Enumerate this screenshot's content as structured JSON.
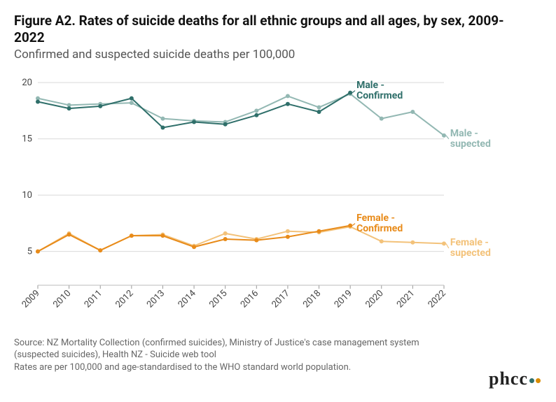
{
  "title": "Figure A2. Rates of suicide deaths for all ethnic groups and all ages, by sex, 2009-2022",
  "subtitle": "Confirmed and suspected suicide deaths per 100,000",
  "source_line1": "Source: NZ Mortality Collection (confirmed suicides), Ministry of Justice's case management system (suspected suicides), Health NZ - Suicide web tool",
  "source_line2": "Rates are per 100,000 and age-standardised to the WHO standard world population.",
  "logo_text": "phcc",
  "logo_dots": [
    "#2f6f6a",
    "#d98c00"
  ],
  "chart": {
    "type": "line",
    "background_color": "#ffffff",
    "grid_color": "#d9d9d9",
    "xlim": [
      2009,
      2022
    ],
    "ylim": [
      2,
      21
    ],
    "yticks": [
      5,
      10,
      15,
      20
    ],
    "xticks": [
      2009,
      2010,
      2011,
      2012,
      2013,
      2014,
      2015,
      2016,
      2017,
      2018,
      2019,
      2020,
      2021,
      2022
    ],
    "xtick_rotation": -45,
    "axis_fontsize": 13,
    "series": {
      "male_confirmed": {
        "label": "Male - Confirmed",
        "color": "#2f6f6a",
        "line_width": 2,
        "marker": "circle",
        "years": [
          2009,
          2010,
          2011,
          2012,
          2013,
          2014,
          2015,
          2016,
          2017,
          2018,
          2019
        ],
        "values": [
          18.3,
          17.7,
          17.9,
          18.6,
          16.0,
          16.5,
          16.3,
          17.1,
          18.1,
          17.4,
          19.1
        ],
        "label_pos_year": 2019.2,
        "label_pos_value": 19.6
      },
      "male_suspected": {
        "label": "Male - supected",
        "color": "#93b8b3",
        "line_width": 2,
        "marker": "circle",
        "years": [
          2009,
          2010,
          2011,
          2012,
          2013,
          2014,
          2015,
          2016,
          2017,
          2018,
          2019,
          2020,
          2021,
          2022
        ],
        "values": [
          18.6,
          18.0,
          18.1,
          18.2,
          16.8,
          16.6,
          16.5,
          17.5,
          18.8,
          17.8,
          19.0,
          16.8,
          17.4,
          15.3
        ],
        "label_pos_year": 2022.2,
        "label_pos_value": 15.3
      },
      "female_confirmed": {
        "label": "Female - Confirmed",
        "color": "#e88b1a",
        "line_width": 2,
        "marker": "circle",
        "years": [
          2009,
          2010,
          2011,
          2012,
          2013,
          2014,
          2015,
          2016,
          2017,
          2018,
          2019
        ],
        "values": [
          5.0,
          6.5,
          5.1,
          6.4,
          6.4,
          5.4,
          6.1,
          6.0,
          6.3,
          6.8,
          7.3
        ],
        "label_pos_year": 2019.2,
        "label_pos_value": 7.8
      },
      "female_suspected": {
        "label": "Female - supected",
        "color": "#f3c27a",
        "line_width": 2,
        "marker": "circle",
        "years": [
          2009,
          2010,
          2011,
          2012,
          2013,
          2014,
          2015,
          2016,
          2017,
          2018,
          2019,
          2020,
          2021,
          2022
        ],
        "values": [
          5.0,
          6.6,
          5.1,
          6.4,
          6.5,
          5.5,
          6.6,
          6.1,
          6.8,
          6.7,
          7.2,
          5.9,
          5.8,
          5.7
        ],
        "label_pos_year": 2022.2,
        "label_pos_value": 5.6
      }
    }
  }
}
